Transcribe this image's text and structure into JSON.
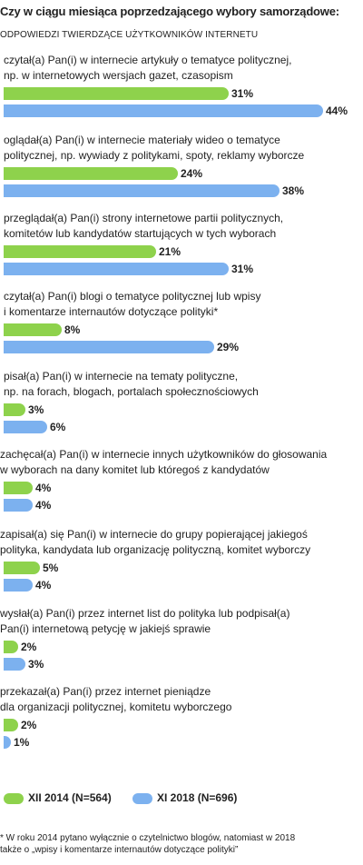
{
  "chart_data": {
    "type": "bar",
    "orientation": "horizontal",
    "title": "Czy w ciągu miesiąca poprzedzającego wybory samorządowe:",
    "subtitle": "ODPOWIEDZI TWIERDZĄCE UŻYTKOWNIKÓW INTERNETU",
    "categories": [
      "czytał(a) Pan(i) w internecie artykuły o tematyce politycznej,\nnp. w internetowych wersjach gazet, czasopism",
      "oglądał(a) Pan(i) w internecie materiały wideo o tematyce\npolitycznej, np. wywiady z politykami, spoty, reklamy wyborcze",
      "przeglądał(a) Pan(i) strony internetowe partii politycznych,\nkomitetów lub kandydatów startujących w tych wyborach",
      "czytał(a) Pan(i) blogi o tematyce politycznej lub wpisy\ni komentarze internautów dotyczące polityki*",
      "pisał(a) Pan(i) w internecie na tematy polityczne,\nnp. na forach, blogach, portalach społecznościowych",
      "zachęcał(a) Pan(i) w internecie innych użytkowników do głosowania\nw wyborach na dany komitet lub któregoś z kandydatów",
      "zapisał(a) się Pan(i) w internecie do grupy popierającej jakiegoś\npolityka, kandydata lub organizację polityczną, komitet wyborczy",
      "wysłał(a) Pan(i) przez internet list do polityka lub podpisał(a)\nPan(i) internetową petycję w jakiejś sprawie",
      "przekazał(a) Pan(i) przez internet pieniądze\ndla organizacji politycznej, komitetu wyborczego"
    ],
    "series": [
      {
        "name": "XII 2014 (N=564)",
        "color": "#8ed24c",
        "values": [
          31,
          24,
          21,
          8,
          3,
          4,
          5,
          2,
          2
        ]
      },
      {
        "name": "XI 2018 (N=696)",
        "color": "#7cb1ef",
        "values": [
          44,
          38,
          31,
          29,
          6,
          4,
          4,
          3,
          1
        ]
      }
    ],
    "value_suffix": "%",
    "xlim": [
      0,
      45
    ],
    "grid": false,
    "legend_position": "bottom-left"
  },
  "footnote": "* W roku 2014 pytano wyłącznie o czytelnictwo blogów, natomiast w 2018\ntakże o „wpisy i komentarze internautów dotyczące polityki”"
}
